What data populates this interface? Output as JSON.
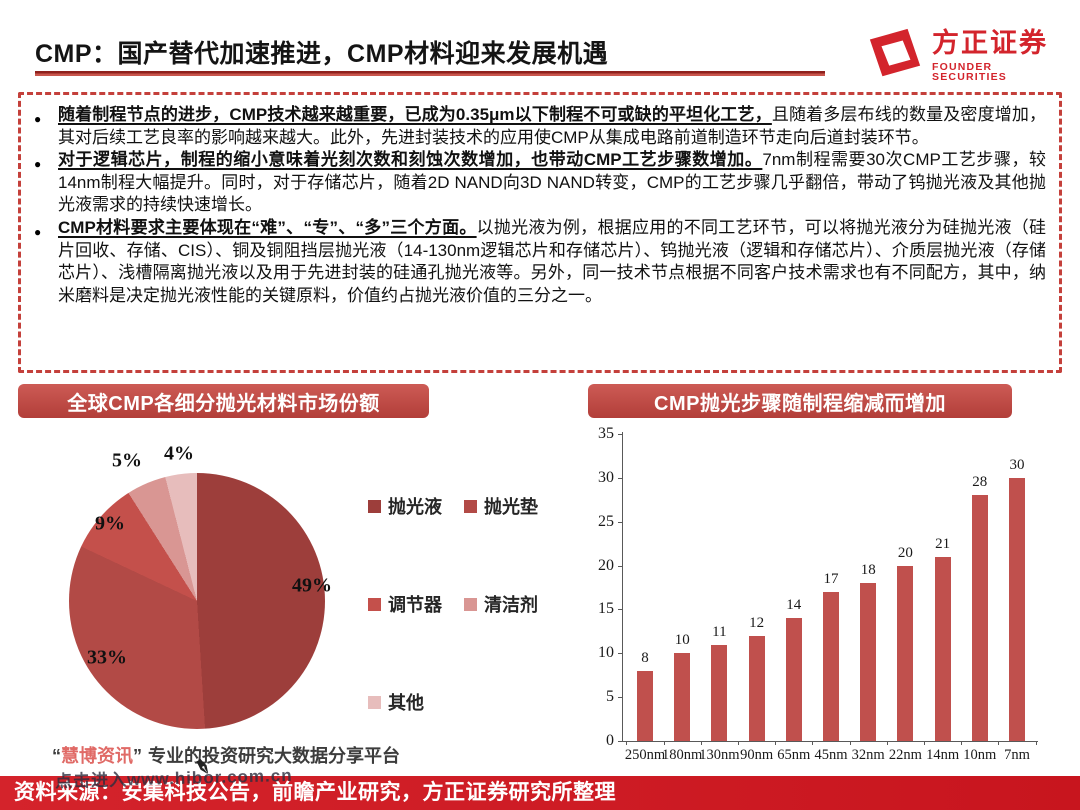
{
  "header": {
    "title": "CMP：国产替代加速推进，CMP材料迎来发展机遇",
    "logo_cn": "方正证券",
    "logo_en": "FOUNDER SECURITIES"
  },
  "bullets": [
    {
      "lead": "随着制程节点的进步，CMP技术越来越重要，已成为0.35μm以下制程不可或缺的平坦化工艺，",
      "rest": "且随着多层布线的数量及密度增加，其对后续工艺良率的影响越来越大。此外，先进封装技术的应用使CMP从集成电路前道制造环节走向后道封装环节。"
    },
    {
      "lead": "对于逻辑芯片，制程的缩小意味着光刻次数和刻蚀次数增加，也带动CMP工艺步骤数增加。",
      "rest": "7nm制程需要30次CMP工艺步骤，较14nm制程大幅提升。同时，对于存储芯片，随着2D NAND向3D NAND转变，CMP的工艺步骤几乎翻倍，带动了钨抛光液及其他抛光液需求的持续快速增长。"
    },
    {
      "lead": "CMP材料要求主要体现在“难”、“专”、“多”三个方面。",
      "rest": "以抛光液为例，根据应用的不同工艺环节，可以将抛光液分为硅抛光液（硅片回收、存储、CIS）、铜及铜阻挡层抛光液（14-130nm逻辑芯片和存储芯片）、钨抛光液（逻辑和存储芯片）、介质层抛光液（存储芯片）、浅槽隔离抛光液以及用于先进封装的硅通孔抛光液等。另外，同一技术节点根据不同客户技术需求也有不同配方，其中，纳米磨料是决定抛光液性能的关键原料，价值约占抛光液价值的三分之一。"
    }
  ],
  "panels": {
    "left_header": "全球CMP各细分抛光材料市场份额",
    "right_header": "CMP抛光步骤随制程缩减而增加"
  },
  "chart_data": [
    {
      "type": "pie",
      "title": "全球CMP各细分抛光材料市场份额",
      "labels": [
        "抛光液",
        "抛光垫",
        "调节器",
        "清洁剂",
        "其他"
      ],
      "values": [
        49,
        33,
        9,
        5,
        4
      ],
      "unit": "%",
      "data_labels": [
        "49%",
        "33%",
        "9%",
        "5%",
        "4%"
      ],
      "colors": [
        "#9d3e3b",
        "#b24a46",
        "#c4504b",
        "#d99693",
        "#e7bdbc"
      ],
      "start_angle_deg": 0,
      "direction": "clockwise",
      "legend_position": "right"
    },
    {
      "type": "bar",
      "title": "CMP抛光步骤随制程缩减而增加",
      "categories": [
        "250nm",
        "180nm",
        "130nm",
        "90nm",
        "65nm",
        "45nm",
        "32nm",
        "22nm",
        "14nm",
        "10nm",
        "7nm"
      ],
      "values": [
        8,
        10,
        11,
        12,
        14,
        17,
        18,
        20,
        21,
        28,
        30
      ],
      "bar_color": "#c0504d",
      "ylim": [
        0,
        35
      ],
      "ytick_step": 5,
      "grid": false,
      "legend_position": "none"
    }
  ],
  "watermark": {
    "quote_open": "“",
    "brand": "慧博资讯",
    "quote_close": "”",
    "tagline": "专业的投资研究大数据分享平台",
    "overlay": "点击进入www.hibor.com.cn",
    "pen_icon": "✒"
  },
  "footer": {
    "source": "资料来源：安集科技公告，前瞻产业研究，方正证券研究所整理"
  },
  "colors": {
    "accent_red": "#c4403b",
    "footer_red": "#cf1d25",
    "logo_red": "#d3242c",
    "bar_red": "#c0504d"
  }
}
